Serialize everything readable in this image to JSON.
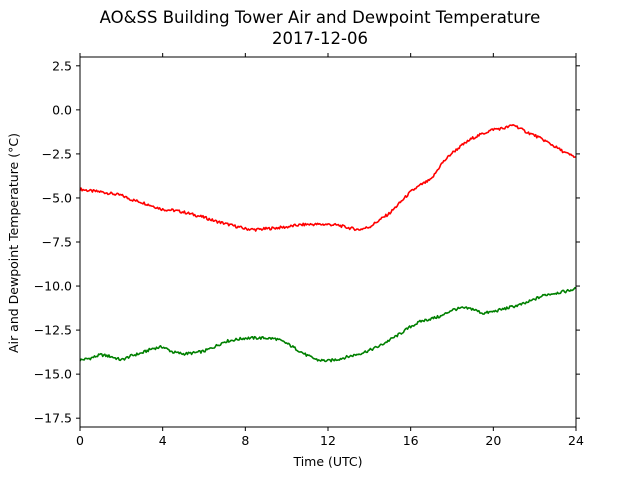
{
  "chart_data": {
    "type": "line",
    "title": "AO&SS Building Tower Air and Dewpoint Temperature",
    "subtitle": "2017-12-06",
    "xlabel": "Time (UTC)",
    "ylabel": "Air and Dewpoint Temperature (°C)",
    "xlim": [
      0,
      24
    ],
    "ylim": [
      -18.0,
      3.0
    ],
    "xticks": [
      0,
      4,
      8,
      12,
      16,
      20,
      24
    ],
    "xtick_labels": [
      "0",
      "4",
      "8",
      "12",
      "16",
      "20",
      "24"
    ],
    "yticks": [
      2.5,
      0.0,
      -2.5,
      -5.0,
      -7.5,
      -10.0,
      -12.5,
      -15.0,
      -17.5
    ],
    "ytick_labels": [
      "2.5",
      "0.0",
      "−2.5",
      "−5.0",
      "−7.5",
      "−10.0",
      "−12.5",
      "−15.0",
      "−17.5"
    ],
    "grid": false,
    "series": [
      {
        "color": "#ff0000",
        "x": [
          0,
          0.5,
          1,
          1.5,
          2,
          2.5,
          3,
          3.5,
          4,
          4.5,
          5,
          5.5,
          6,
          6.5,
          7,
          7.5,
          8,
          8.5,
          9,
          9.5,
          10,
          10.5,
          11,
          11.5,
          12,
          12.5,
          13,
          13.5,
          14,
          14.5,
          15,
          15.5,
          16,
          16.5,
          17,
          17.5,
          18,
          18.5,
          19,
          19.5,
          20,
          20.5,
          21,
          21.5,
          22,
          22.5,
          23,
          23.5,
          24
        ],
        "values": [
          -4.5,
          -4.6,
          -4.65,
          -4.75,
          -4.85,
          -5.1,
          -5.25,
          -5.45,
          -5.65,
          -5.7,
          -5.8,
          -5.95,
          -6.1,
          -6.3,
          -6.45,
          -6.6,
          -6.75,
          -6.8,
          -6.75,
          -6.7,
          -6.65,
          -6.55,
          -6.5,
          -6.5,
          -6.5,
          -6.55,
          -6.7,
          -6.8,
          -6.65,
          -6.25,
          -5.85,
          -5.25,
          -4.65,
          -4.25,
          -3.95,
          -3.05,
          -2.45,
          -2.0,
          -1.6,
          -1.35,
          -1.1,
          -1.05,
          -0.85,
          -1.2,
          -1.45,
          -1.75,
          -2.1,
          -2.45,
          -2.7
        ]
      },
      {
        "color": "#008000",
        "x": [
          0,
          0.5,
          1,
          1.5,
          2,
          2.5,
          3,
          3.5,
          4,
          4.5,
          5,
          5.5,
          6,
          6.5,
          7,
          7.5,
          8,
          8.5,
          9,
          9.5,
          10,
          10.5,
          11,
          11.5,
          12,
          12.5,
          13,
          13.5,
          14,
          14.5,
          15,
          15.5,
          16,
          16.5,
          17,
          17.5,
          18,
          18.5,
          19,
          19.5,
          20,
          20.5,
          21,
          21.5,
          22,
          22.5,
          23,
          23.5,
          24
        ],
        "values": [
          -14.2,
          -14.1,
          -13.9,
          -14.0,
          -14.2,
          -13.95,
          -13.8,
          -13.55,
          -13.45,
          -13.75,
          -13.85,
          -13.8,
          -13.7,
          -13.45,
          -13.15,
          -13.05,
          -12.95,
          -12.95,
          -12.95,
          -13.0,
          -13.25,
          -13.6,
          -13.95,
          -14.2,
          -14.25,
          -14.15,
          -14.0,
          -13.85,
          -13.65,
          -13.4,
          -13.05,
          -12.7,
          -12.3,
          -12.0,
          -11.85,
          -11.7,
          -11.35,
          -11.25,
          -11.3,
          -11.55,
          -11.45,
          -11.3,
          -11.15,
          -11.0,
          -10.75,
          -10.5,
          -10.4,
          -10.3,
          -10.15
        ]
      }
    ]
  }
}
